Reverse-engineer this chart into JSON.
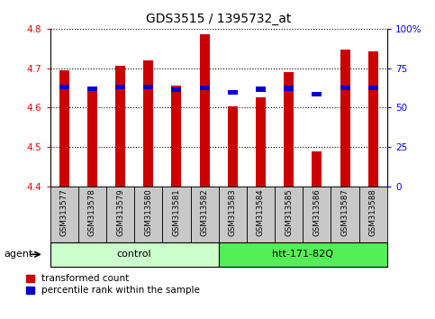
{
  "title": "GDS3515 / 1395732_at",
  "samples": [
    "GSM313577",
    "GSM313578",
    "GSM313579",
    "GSM313580",
    "GSM313581",
    "GSM313582",
    "GSM313583",
    "GSM313584",
    "GSM313585",
    "GSM313586",
    "GSM313587",
    "GSM313588"
  ],
  "red_values": [
    4.695,
    4.648,
    4.705,
    4.72,
    4.655,
    4.785,
    4.603,
    4.627,
    4.69,
    4.49,
    4.748,
    4.742
  ],
  "blue_values": [
    4.652,
    4.648,
    4.652,
    4.652,
    4.645,
    4.65,
    4.638,
    4.647,
    4.649,
    4.635,
    4.651,
    4.65
  ],
  "y_min": 4.4,
  "y_max": 4.8,
  "y_ticks_left": [
    4.4,
    4.5,
    4.6,
    4.7,
    4.8
  ],
  "y_ticks_right_vals": [
    0,
    25,
    50,
    75,
    100
  ],
  "y_ticks_right_labels": [
    "0",
    "25",
    "50",
    "75",
    "100%"
  ],
  "groups": [
    {
      "label": "control",
      "start": 0,
      "end": 6,
      "color": "#ccffcc"
    },
    {
      "label": "htt-171-82Q",
      "start": 6,
      "end": 12,
      "color": "#55ee55"
    }
  ],
  "agent_label": "agent",
  "bar_bottom": 4.4,
  "red_color": "#cc0000",
  "blue_color": "#0000cc",
  "grid_color": "#000000",
  "bg_color": "#ffffff",
  "tick_bg_color": "#c8c8c8"
}
